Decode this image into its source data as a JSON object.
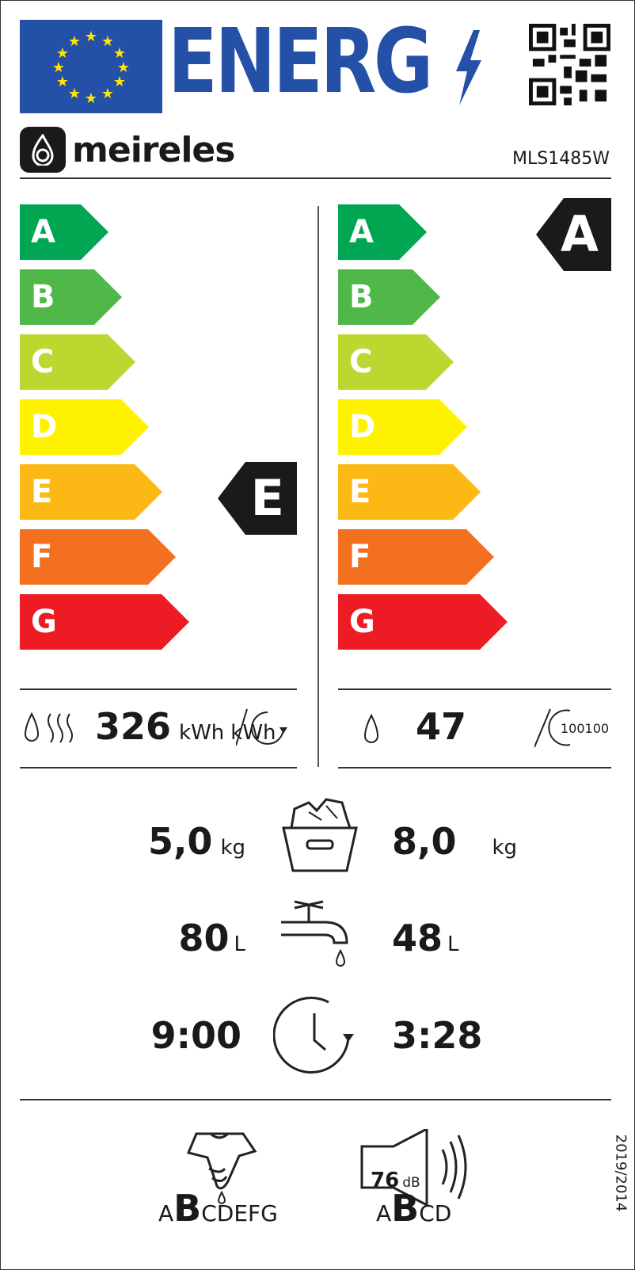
{
  "header": {
    "energy_word": "ENERG",
    "brand": "meireles",
    "model": "MLS1485W"
  },
  "scale_classes": [
    "A",
    "B",
    "C",
    "D",
    "E",
    "F",
    "G"
  ],
  "colors": {
    "A": "#00a651",
    "B": "#50b848",
    "C": "#bed630",
    "D": "#fff200",
    "E": "#fcb814",
    "F": "#f37021",
    "G": "#ed1c24",
    "eu_blue": "#2550a8"
  },
  "left_scale": {
    "rating": "E"
  },
  "right_scale": {
    "rating": "A"
  },
  "energy": {
    "value": "326",
    "unit": "kWh",
    "cycle_unit": "kWh"
  },
  "water_consumption": {
    "value": "47",
    "cycle_label": "100"
  },
  "capacity": {
    "wash": "5,0",
    "dry": "8,0",
    "unit": "kg"
  },
  "water": {
    "wash": "80",
    "dry": "48",
    "unit": "L"
  },
  "duration": {
    "wash": "9:00",
    "dry": "3:28"
  },
  "spin": {
    "pre": "A",
    "rating": "B",
    "post": "CDEFG"
  },
  "noise": {
    "value": "76",
    "unit": "dB",
    "pre": "A",
    "rating": "B",
    "post": "CD"
  },
  "regulation": "2019/2014"
}
